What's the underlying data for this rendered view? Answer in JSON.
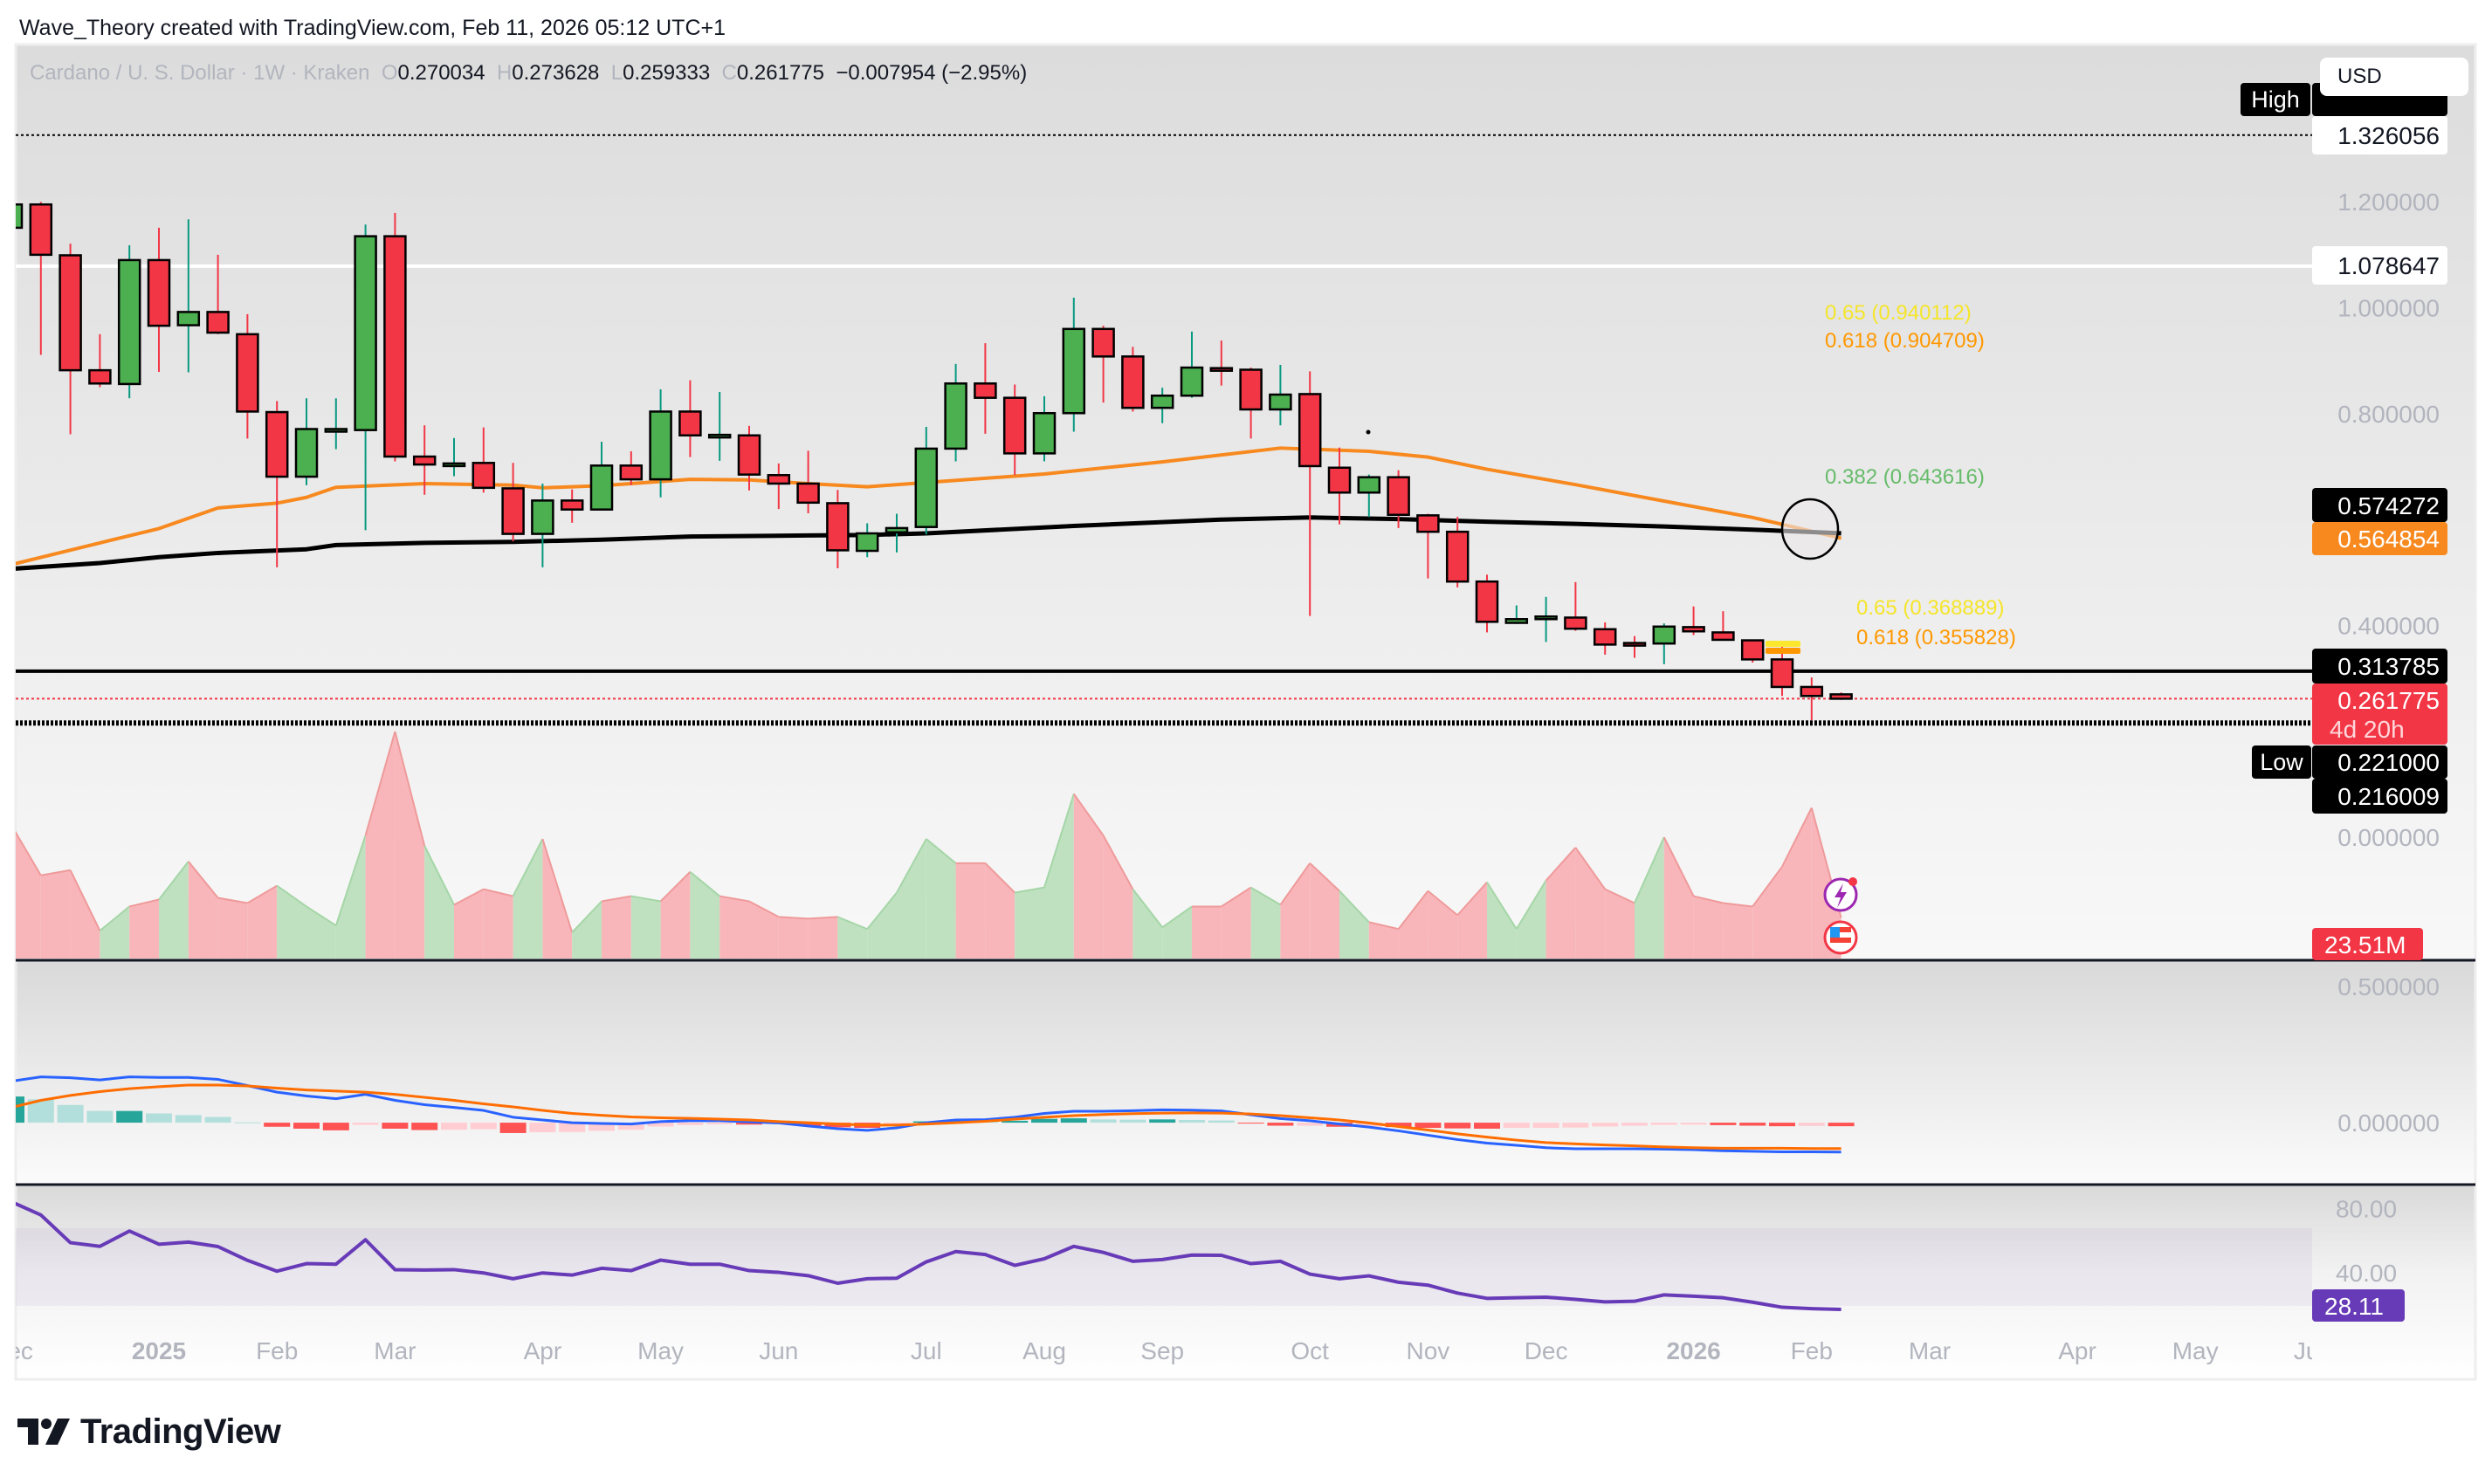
{
  "header": {
    "attribution": "Wave_Theory created with TradingView.com, Feb 11, 2026 05:12 UTC+1"
  },
  "legend": {
    "symbol": "Cardano / U. S. Dollar · 1W · Kraken",
    "o_label": "O",
    "open": "0.270034",
    "h_label": "H",
    "high": "0.273628",
    "l_label": "L",
    "low": "0.259333",
    "c_label": "C",
    "close": "0.261775",
    "change": "−0.007954 (−2.95%)"
  },
  "currency_button": "USD",
  "price_labels": {
    "high_tag": "High",
    "high_value": "1.326056",
    "level_1": "1.078647",
    "ema_black": "0.574272",
    "ema_orange": "0.564854",
    "level_2": "0.313785",
    "last": "0.261775",
    "countdown": "4d 20h",
    "low_tag": "Low",
    "low_value": "0.221000",
    "level_3": "0.216009",
    "volume": "23.51M",
    "rsi": "28.11"
  },
  "fib_labels": {
    "upper_065": "0.65 (0.940112)",
    "upper_0618": "0.618 (0.904709)",
    "mid_0382": "0.382 (0.643616)",
    "lower_065": "0.65 (0.368889)",
    "lower_0618": "0.618 (0.355828)"
  },
  "footer": {
    "logo_text": "TradingView"
  },
  "colors": {
    "up": "#4caf50",
    "down": "#f23645",
    "up_wick": "#089981",
    "down_wick": "#f23645",
    "ema_orange": "#f7891f",
    "ema_black": "#000000",
    "vol_up": "#bfe1c0",
    "vol_down": "#f8b6bb",
    "macd": "#2962ff",
    "signal": "#ff6d00",
    "hist_up_strong": "#26a69a",
    "hist_up_weak": "#b2dfdb",
    "hist_down_strong": "#ff5252",
    "hist_down_weak": "#ffcdd2",
    "rsi": "#673ab7",
    "fib_yellow": "#f5e52a",
    "fib_orange": "#ff9800",
    "fib_green": "#66bb6a"
  },
  "chart_data": {
    "type": "candlestick",
    "title": "Cardano / U. S. Dollar · 1W · Kraken",
    "interval": "1W",
    "price_axis_range": [
      -0.232,
      1.497
    ],
    "price_ticks": [
      "1.200000",
      "1.000000",
      "0.800000",
      "0.400000",
      "0.000000"
    ],
    "x_labels": [
      [
        "Dec",
        "2024-12-02"
      ],
      [
        "2025",
        "2025-01-06"
      ],
      [
        "Feb",
        "2025-02-03"
      ],
      [
        "Mar",
        "2025-03-03"
      ],
      [
        "Apr",
        "2025-04-07"
      ],
      [
        "May",
        "2025-05-05"
      ],
      [
        "Jun",
        "2025-06-02"
      ],
      [
        "Jul",
        "2025-07-07"
      ],
      [
        "Aug",
        "2025-08-04"
      ],
      [
        "Sep",
        "2025-09-01"
      ],
      [
        "Oct",
        "2025-10-06"
      ],
      [
        "Nov",
        "2025-11-03"
      ],
      [
        "Dec",
        "2025-12-01"
      ],
      [
        "2026",
        "2026-01-05"
      ],
      [
        "Feb",
        "2026-02-02"
      ],
      [
        "Mar",
        "2026-03-02"
      ],
      [
        "Apr",
        "2026-04-06"
      ],
      [
        "May",
        "2026-05-04"
      ],
      [
        "Jun",
        "2026-06-01"
      ]
    ],
    "candles": [
      [
        "2024-12-02",
        1.151,
        1.2,
        1.13,
        1.195
      ],
      [
        "2024-12-09",
        1.195,
        1.2,
        0.911,
        1.1
      ],
      [
        "2024-12-16",
        1.099,
        1.121,
        0.761,
        0.882
      ],
      [
        "2024-12-23",
        0.882,
        0.95,
        0.85,
        0.857
      ],
      [
        "2024-12-30",
        0.856,
        1.118,
        0.829,
        1.09
      ],
      [
        "2025-01-06",
        1.09,
        1.151,
        0.879,
        0.966
      ],
      [
        "2025-01-13",
        0.967,
        1.167,
        0.878,
        0.992
      ],
      [
        "2025-01-20",
        0.992,
        1.1,
        0.95,
        0.953
      ],
      [
        "2025-01-27",
        0.95,
        0.988,
        0.753,
        0.804
      ],
      [
        "2025-02-03",
        0.803,
        0.824,
        0.51,
        0.681
      ],
      [
        "2025-02-10",
        0.681,
        0.829,
        0.665,
        0.771
      ],
      [
        "2025-02-17",
        0.77,
        0.829,
        0.733,
        0.771
      ],
      [
        "2025-02-24",
        0.769,
        1.157,
        0.58,
        1.135
      ],
      [
        "2025-03-03",
        1.135,
        1.179,
        0.71,
        0.719
      ],
      [
        "2025-03-10",
        0.719,
        0.778,
        0.647,
        0.704
      ],
      [
        "2025-03-17",
        0.705,
        0.754,
        0.682,
        0.706
      ],
      [
        "2025-03-24",
        0.707,
        0.774,
        0.651,
        0.66
      ],
      [
        "2025-03-31",
        0.659,
        0.707,
        0.559,
        0.573
      ],
      [
        "2025-04-07",
        0.573,
        0.668,
        0.51,
        0.636
      ],
      [
        "2025-04-14",
        0.636,
        0.657,
        0.594,
        0.619
      ],
      [
        "2025-04-21",
        0.619,
        0.747,
        0.617,
        0.702
      ],
      [
        "2025-04-28",
        0.702,
        0.729,
        0.665,
        0.676
      ],
      [
        "2025-05-05",
        0.676,
        0.846,
        0.642,
        0.804
      ],
      [
        "2025-05-12",
        0.804,
        0.863,
        0.718,
        0.759
      ],
      [
        "2025-05-19",
        0.759,
        0.841,
        0.711,
        0.76
      ],
      [
        "2025-05-26",
        0.759,
        0.777,
        0.655,
        0.685
      ],
      [
        "2025-06-02",
        0.684,
        0.706,
        0.62,
        0.668
      ],
      [
        "2025-06-09",
        0.668,
        0.73,
        0.612,
        0.632
      ],
      [
        "2025-06-16",
        0.631,
        0.656,
        0.508,
        0.542
      ],
      [
        "2025-06-23",
        0.541,
        0.593,
        0.529,
        0.574
      ],
      [
        "2025-06-30",
        0.576,
        0.611,
        0.538,
        0.584
      ],
      [
        "2025-07-07",
        0.586,
        0.775,
        0.572,
        0.734
      ],
      [
        "2025-07-14",
        0.734,
        0.894,
        0.71,
        0.857
      ],
      [
        "2025-07-21",
        0.857,
        0.933,
        0.762,
        0.83
      ],
      [
        "2025-07-28",
        0.83,
        0.855,
        0.684,
        0.725
      ],
      [
        "2025-08-04",
        0.725,
        0.833,
        0.71,
        0.801
      ],
      [
        "2025-08-11",
        0.801,
        1.019,
        0.766,
        0.96
      ],
      [
        "2025-08-18",
        0.96,
        0.966,
        0.821,
        0.908
      ],
      [
        "2025-08-25",
        0.908,
        0.926,
        0.804,
        0.811
      ],
      [
        "2025-09-01",
        0.811,
        0.849,
        0.782,
        0.834
      ],
      [
        "2025-09-08",
        0.834,
        0.955,
        0.83,
        0.887
      ],
      [
        "2025-09-15",
        0.886,
        0.938,
        0.853,
        0.885
      ],
      [
        "2025-09-22",
        0.883,
        0.887,
        0.753,
        0.808
      ],
      [
        "2025-09-29",
        0.808,
        0.892,
        0.778,
        0.836
      ],
      [
        "2025-10-06",
        0.837,
        0.88,
        0.418,
        0.701
      ],
      [
        "2025-10-13",
        0.698,
        0.736,
        0.591,
        0.651
      ],
      [
        "2025-10-20",
        0.651,
        0.685,
        0.605,
        0.68
      ],
      [
        "2025-10-27",
        0.68,
        0.693,
        0.584,
        0.609
      ],
      [
        "2025-11-03",
        0.608,
        0.611,
        0.489,
        0.577
      ],
      [
        "2025-11-10",
        0.577,
        0.605,
        0.472,
        0.483
      ],
      [
        "2025-11-17",
        0.483,
        0.496,
        0.387,
        0.407
      ],
      [
        "2025-11-24",
        0.405,
        0.438,
        0.403,
        0.412
      ],
      [
        "2025-12-01",
        0.416,
        0.454,
        0.369,
        0.417
      ],
      [
        "2025-12-08",
        0.415,
        0.482,
        0.39,
        0.394
      ],
      [
        "2025-12-15",
        0.393,
        0.406,
        0.345,
        0.364
      ],
      [
        "2025-12-22",
        0.367,
        0.38,
        0.339,
        0.366
      ],
      [
        "2025-12-29",
        0.366,
        0.404,
        0.327,
        0.398
      ],
      [
        "2026-01-05",
        0.397,
        0.436,
        0.382,
        0.389
      ],
      [
        "2026-01-12",
        0.387,
        0.427,
        0.373,
        0.373
      ],
      [
        "2026-01-19",
        0.372,
        0.373,
        0.33,
        0.336
      ],
      [
        "2026-01-26",
        0.336,
        0.363,
        0.267,
        0.284
      ],
      [
        "2026-02-02",
        0.284,
        0.302,
        0.221,
        0.267
      ],
      [
        "2026-02-09",
        0.270034,
        0.273628,
        0.259333,
        0.261775
      ]
    ],
    "ema_orange": [
      [
        "2024-12-02",
        0.515
      ],
      [
        "2024-12-23",
        0.556
      ],
      [
        "2025-01-06",
        0.583
      ],
      [
        "2025-01-20",
        0.622
      ],
      [
        "2025-02-03",
        0.631
      ],
      [
        "2025-02-10",
        0.642
      ],
      [
        "2025-02-17",
        0.661
      ],
      [
        "2025-03-10",
        0.668
      ],
      [
        "2025-03-31",
        0.665
      ],
      [
        "2025-04-07",
        0.66
      ],
      [
        "2025-04-21",
        0.664
      ],
      [
        "2025-05-12",
        0.676
      ],
      [
        "2025-05-26",
        0.675
      ],
      [
        "2025-06-09",
        0.668
      ],
      [
        "2025-06-23",
        0.662
      ],
      [
        "2025-07-07",
        0.67
      ],
      [
        "2025-08-04",
        0.686
      ],
      [
        "2025-09-01",
        0.709
      ],
      [
        "2025-09-29",
        0.735
      ],
      [
        "2025-10-20",
        0.729
      ],
      [
        "2025-11-03",
        0.718
      ],
      [
        "2025-11-17",
        0.695
      ],
      [
        "2025-12-08",
        0.666
      ],
      [
        "2025-12-29",
        0.635
      ],
      [
        "2026-01-19",
        0.604
      ],
      [
        "2026-02-09",
        0.564854
      ]
    ],
    "ema_black": [
      [
        "2024-12-02",
        0.507
      ],
      [
        "2024-12-23",
        0.518
      ],
      [
        "2025-01-06",
        0.529
      ],
      [
        "2025-01-20",
        0.537
      ],
      [
        "2025-02-10",
        0.544
      ],
      [
        "2025-02-17",
        0.552
      ],
      [
        "2025-03-10",
        0.556
      ],
      [
        "2025-03-31",
        0.558
      ],
      [
        "2025-04-21",
        0.562
      ],
      [
        "2025-05-12",
        0.568
      ],
      [
        "2025-06-09",
        0.57
      ],
      [
        "2025-06-23",
        0.571
      ],
      [
        "2025-07-07",
        0.574
      ],
      [
        "2025-08-11",
        0.588
      ],
      [
        "2025-09-15",
        0.6
      ],
      [
        "2025-10-06",
        0.604
      ],
      [
        "2025-10-27",
        0.601
      ],
      [
        "2025-11-17",
        0.596
      ],
      [
        "2025-12-08",
        0.592
      ],
      [
        "2025-12-29",
        0.587
      ],
      [
        "2026-01-19",
        0.581
      ],
      [
        "2026-02-09",
        0.574272
      ]
    ],
    "volume_m": [
      77,
      48,
      51,
      16,
      30,
      34,
      56,
      35,
      32,
      42,
      30,
      19,
      71,
      131,
      65,
      31,
      40,
      36,
      69,
      15,
      33,
      36,
      33,
      50,
      36,
      33,
      24,
      23,
      24,
      17,
      38,
      69,
      55,
      55,
      38,
      41,
      95,
      71,
      40,
      18,
      30,
      30,
      41,
      31,
      55,
      39,
      21,
      17,
      39,
      25,
      44,
      17,
      45,
      64,
      40,
      32,
      70,
      36,
      32,
      30,
      53,
      87,
      23.51
    ],
    "horizontal_levels": [
      {
        "value": 1.326056,
        "style": "dotted",
        "color": "#000000"
      },
      {
        "value": 1.078647,
        "style": "solid",
        "color": "#ffffff"
      },
      {
        "value": 0.313785,
        "style": "solid",
        "color": "#000000"
      },
      {
        "value": 0.261775,
        "style": "dotted",
        "color": "#f23645"
      },
      {
        "value": 0.216009,
        "style": "dashed",
        "color": "#000000"
      }
    ],
    "macd_axis_range": [
      -0.224,
      0.593
    ],
    "macd_ticks": [
      "0.500000",
      "0.000000"
    ],
    "macd": [
      0.152,
      0.168,
      0.165,
      0.157,
      0.168,
      0.166,
      0.166,
      0.159,
      0.136,
      0.112,
      0.098,
      0.088,
      0.104,
      0.082,
      0.066,
      0.056,
      0.045,
      0.02,
      0.01,
      0.0,
      -0.003,
      -0.005,
      0.004,
      0.007,
      0.007,
      0.003,
      -0.001,
      -0.012,
      -0.022,
      -0.028,
      -0.019,
      0.0,
      0.01,
      0.011,
      0.02,
      0.034,
      0.042,
      0.042,
      0.044,
      0.047,
      0.046,
      0.043,
      0.029,
      0.015,
      0.007,
      -0.005,
      -0.016,
      -0.03,
      -0.046,
      -0.062,
      -0.075,
      -0.083,
      -0.092,
      -0.096,
      -0.096,
      -0.096,
      -0.097,
      -0.099,
      -0.103,
      -0.105,
      -0.107,
      -0.107,
      -0.108
    ],
    "signal": [
      0.056,
      0.082,
      0.1,
      0.114,
      0.125,
      0.132,
      0.138,
      0.138,
      0.135,
      0.127,
      0.12,
      0.116,
      0.112,
      0.104,
      0.093,
      0.082,
      0.069,
      0.058,
      0.045,
      0.034,
      0.027,
      0.021,
      0.018,
      0.016,
      0.013,
      0.01,
      0.004,
      0.0,
      -0.005,
      -0.009,
      -0.009,
      -0.005,
      0.0,
      0.005,
      0.013,
      0.02,
      0.026,
      0.03,
      0.033,
      0.035,
      0.036,
      0.035,
      0.032,
      0.026,
      0.018,
      0.01,
      -0.001,
      -0.014,
      -0.027,
      -0.041,
      -0.053,
      -0.064,
      -0.073,
      -0.078,
      -0.082,
      -0.085,
      -0.089,
      -0.092,
      -0.094,
      -0.094,
      -0.094,
      -0.095,
      -0.095
    ],
    "rsi_axis_range": [
      23.6,
      92
    ],
    "rsi_band": [
      30,
      70
    ],
    "rsi_ticks": [
      "80.00",
      "40.00"
    ],
    "rsi": [
      83.6,
      76.8,
      62.5,
      60.6,
      68.5,
      61.7,
      62.8,
      60.5,
      53.4,
      47.8,
      51.7,
      51.4,
      64.0,
      48.6,
      48.4,
      48.6,
      46.9,
      43.9,
      46.9,
      45.8,
      49.3,
      48.1,
      53.5,
      51.4,
      51.4,
      48.1,
      47.2,
      45.5,
      41.6,
      43.9,
      44.2,
      52.6,
      57.9,
      56.4,
      50.8,
      54.2,
      60.6,
      57.5,
      52.9,
      53.8,
      56.1,
      56.0,
      51.7,
      52.9,
      46.3,
      43.9,
      45.4,
      42.1,
      40.6,
      36.5,
      33.8,
      34.1,
      34.4,
      33.3,
      32.0,
      32.3,
      35.6,
      34.9,
      34.1,
      31.8,
      29.2,
      28.5,
      28.11
    ]
  }
}
